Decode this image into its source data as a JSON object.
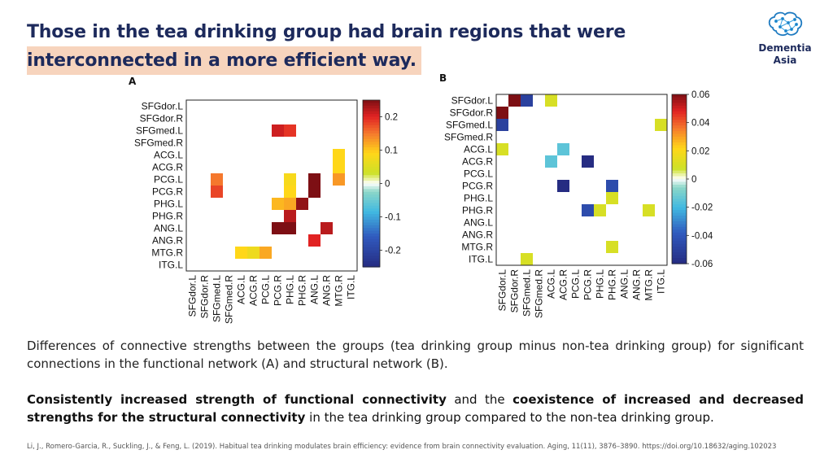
{
  "title": {
    "line1": "Those in the tea drinking group had brain regions that were",
    "line2": "interconnected in a more efficient way."
  },
  "logo": {
    "name_line1": "Dementia",
    "name_line2": "Asia"
  },
  "panels": {
    "a": {
      "label": "A",
      "regions": [
        "SFGdor.L",
        "SFGdor.R",
        "SFGmed.L",
        "SFGmed.R",
        "ACG.L",
        "ACG.R",
        "PCG.L",
        "PCG.R",
        "PHG.L",
        "PHG.R",
        "ANG.L",
        "ANG.R",
        "MTG.R",
        "ITG.L"
      ],
      "colorbar": {
        "min": -0.25,
        "max": 0.25,
        "ticks": [
          0.2,
          0.1,
          0,
          -0.1,
          -0.2
        ],
        "tick_labels": [
          "0.2",
          "0.1",
          "0",
          "-0.1",
          "-0.2"
        ]
      },
      "cells": [
        {
          "row": 2,
          "col": 7,
          "v": 0.21
        },
        {
          "row": 2,
          "col": 8,
          "v": 0.19
        },
        {
          "row": 4,
          "col": 12,
          "v": 0.09
        },
        {
          "row": 5,
          "col": 12,
          "v": 0.09
        },
        {
          "row": 6,
          "col": 2,
          "v": 0.15
        },
        {
          "row": 6,
          "col": 8,
          "v": 0.08
        },
        {
          "row": 6,
          "col": 10,
          "v": 0.25
        },
        {
          "row": 6,
          "col": 12,
          "v": 0.13
        },
        {
          "row": 7,
          "col": 2,
          "v": 0.18
        },
        {
          "row": 7,
          "col": 8,
          "v": 0.09
        },
        {
          "row": 7,
          "col": 10,
          "v": 0.25
        },
        {
          "row": 8,
          "col": 7,
          "v": 0.11
        },
        {
          "row": 8,
          "col": 8,
          "v": 0.12
        },
        {
          "row": 8,
          "col": 9,
          "v": 0.24
        },
        {
          "row": 9,
          "col": 8,
          "v": 0.22
        },
        {
          "row": 10,
          "col": 7,
          "v": 0.25
        },
        {
          "row": 10,
          "col": 8,
          "v": 0.25
        },
        {
          "row": 10,
          "col": 11,
          "v": 0.22
        },
        {
          "row": 11,
          "col": 10,
          "v": 0.2
        },
        {
          "row": 12,
          "col": 4,
          "v": 0.09
        },
        {
          "row": 12,
          "col": 5,
          "v": 0.07
        },
        {
          "row": 12,
          "col": 6,
          "v": 0.12
        }
      ]
    },
    "b": {
      "label": "B",
      "regions": [
        "SFGdor.L",
        "SFGdor.R",
        "SFGmed.L",
        "SFGmed.R",
        "ACG.L",
        "ACG.R",
        "PCG.L",
        "PCG.R",
        "PHG.L",
        "PHG.R",
        "ANG.L",
        "ANG.R",
        "MTG.R",
        "ITG.L"
      ],
      "colorbar": {
        "min": -0.06,
        "max": 0.06,
        "ticks": [
          0.06,
          0.04,
          0.02,
          0,
          -0.02,
          -0.04,
          -0.06
        ],
        "tick_labels": [
          "0.06",
          "0.04",
          "0.02",
          "0",
          "-0.02",
          "-0.04",
          "-0.06"
        ]
      },
      "cells": [
        {
          "row": 0,
          "col": 1,
          "v": 0.06
        },
        {
          "row": 0,
          "col": 2,
          "v": -0.05
        },
        {
          "row": 0,
          "col": 4,
          "v": 0.01
        },
        {
          "row": 1,
          "col": 0,
          "v": 0.06
        },
        {
          "row": 2,
          "col": 0,
          "v": -0.05
        },
        {
          "row": 2,
          "col": 13,
          "v": 0.01
        },
        {
          "row": 4,
          "col": 0,
          "v": 0.01
        },
        {
          "row": 4,
          "col": 5,
          "v": -0.015
        },
        {
          "row": 5,
          "col": 4,
          "v": -0.015
        },
        {
          "row": 5,
          "col": 7,
          "v": -0.06
        },
        {
          "row": 7,
          "col": 5,
          "v": -0.06
        },
        {
          "row": 7,
          "col": 9,
          "v": -0.045
        },
        {
          "row": 8,
          "col": 9,
          "v": 0.01
        },
        {
          "row": 9,
          "col": 7,
          "v": -0.045
        },
        {
          "row": 9,
          "col": 8,
          "v": 0.01
        },
        {
          "row": 9,
          "col": 12,
          "v": 0.01
        },
        {
          "row": 12,
          "col": 9,
          "v": 0.01
        },
        {
          "row": 13,
          "col": 2,
          "v": 0.01
        }
      ]
    }
  },
  "caption": "Differences of connective strengths between the groups (tea drinking group minus non-tea drinking group) for significant connections in the functional network (A) and structural network (B).",
  "summary": {
    "bold1": "Consistently increased strength of functional connectivity",
    "text1": " and the ",
    "bold2": "coexistence of increased and decreased strengths for the structural connectivity",
    "text2": " in the tea drinking group compared to the non-tea drinking group."
  },
  "reference": "Li, J., Romero-Garcia, R., Suckling, J., & Feng, L. (2019). Habitual tea drinking modulates brain efficiency: evidence from brain connectivity evaluation. Aging, 11(11), 3876–3890. https://doi.org/10.18632/aging.102023"
}
